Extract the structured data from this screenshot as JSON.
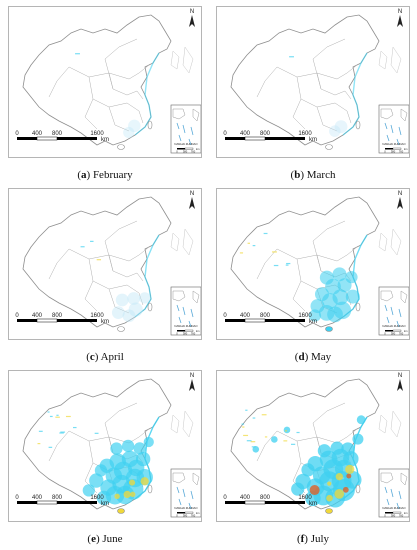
{
  "panels": [
    {
      "letter": "a",
      "month": "February",
      "intensity": 0.05
    },
    {
      "letter": "b",
      "month": "March",
      "intensity": 0.08
    },
    {
      "letter": "c",
      "month": "April",
      "intensity": 0.22
    },
    {
      "letter": "d",
      "month": "May",
      "intensity": 0.55
    },
    {
      "letter": "e",
      "month": "June",
      "intensity": 0.85
    },
    {
      "letter": "f",
      "month": "July",
      "intensity": 1.0
    }
  ],
  "scale": {
    "ticks": [
      "0",
      "400",
      "800",
      "1600"
    ],
    "unit": "km"
  },
  "north_label": "N",
  "inset": {
    "ticks": [
      "0",
      "380",
      "760"
    ],
    "unit": "km",
    "label": "NANHAI ZHUDAO"
  },
  "colors": {
    "land_fill": "#ffffff",
    "border": "#9a9a9a",
    "low": "#bfe6f7",
    "mid": "#3fd0f0",
    "high": "#f0d83a",
    "peak": "#e85a1a"
  }
}
